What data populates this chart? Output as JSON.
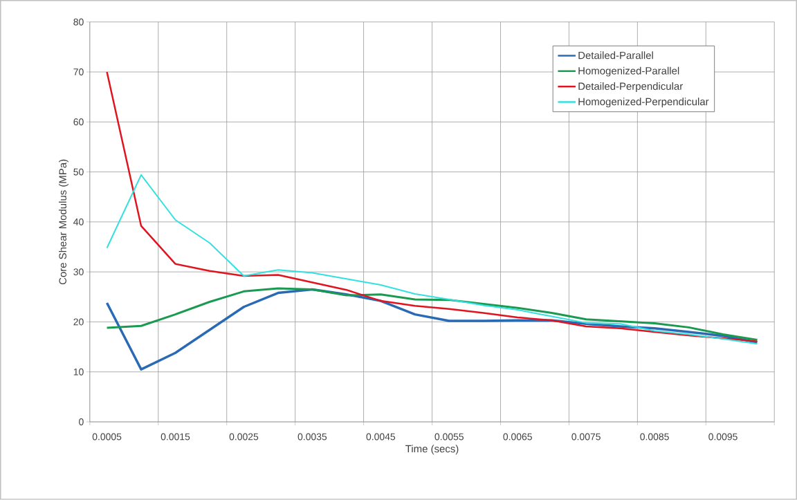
{
  "chart_data": {
    "type": "line",
    "xlabel": "Time (secs)",
    "ylabel": "Core Shear Modulus (MPa)",
    "categories": [
      "0.0005",
      null,
      "0.0015",
      null,
      "0.0025",
      null,
      "0.0035",
      null,
      "0.0045",
      null,
      "0.0055",
      null,
      "0.0065",
      null,
      "0.0075",
      null,
      "0.0085",
      null,
      "0.0095",
      null
    ],
    "series": [
      {
        "name": "Detailed-Parallel",
        "color": "#2a6ab5",
        "values": [
          23.8,
          10.5,
          13.8,
          18.4,
          23.0,
          25.8,
          26.5,
          25.5,
          24.2,
          21.5,
          20.2,
          20.2,
          20.3,
          20.3,
          19.6,
          19.1,
          18.7,
          18.0,
          17.2,
          15.9
        ]
      },
      {
        "name": "Homogenized-Parallel",
        "color": "#1a9a50",
        "values": [
          18.8,
          19.2,
          21.5,
          24.0,
          26.1,
          26.7,
          26.5,
          25.3,
          25.5,
          24.5,
          24.4,
          23.6,
          22.8,
          21.8,
          20.5,
          20.1,
          19.7,
          18.9,
          17.5,
          16.4
        ]
      },
      {
        "name": "Detailed-Perpendicular",
        "color": "#e0141e",
        "values": [
          70.0,
          39.2,
          31.6,
          30.2,
          29.2,
          29.4,
          27.9,
          26.4,
          24.2,
          23.2,
          22.6,
          21.8,
          20.9,
          20.3,
          19.1,
          18.7,
          18.0,
          17.3,
          16.7,
          16.1
        ]
      },
      {
        "name": "Homogenized-Perpendicular",
        "color": "#33e0e0",
        "values": [
          34.8,
          49.4,
          40.4,
          35.8,
          29.2,
          30.4,
          29.8,
          28.6,
          27.4,
          25.6,
          24.5,
          23.3,
          22.4,
          21.1,
          19.8,
          19.6,
          18.2,
          17.5,
          16.6,
          15.6
        ]
      }
    ],
    "ylim": [
      0,
      80
    ],
    "yticks": [
      0,
      10,
      20,
      30,
      40,
      50,
      60,
      70,
      80
    ],
    "grid": true,
    "legend": "top right",
    "line_style": "solid"
  }
}
